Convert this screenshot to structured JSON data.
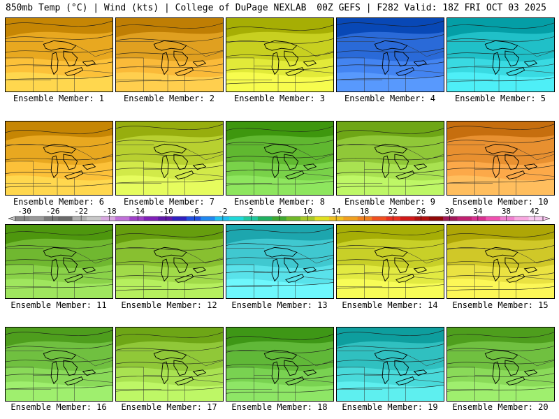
{
  "header": {
    "left": "850mb Temp (°C) | Wind (kts) | College of DuPage NEXLAB",
    "right": "00Z GEFS | F282 Valid: 18Z FRI OCT 03 2025"
  },
  "member_label_prefix": "Ensemble Member:",
  "members": [
    {
      "number": "1",
      "dominant_color": "#e8a820"
    },
    {
      "number": "2",
      "dominant_color": "#e0a020"
    },
    {
      "number": "3",
      "dominant_color": "#c8d020"
    },
    {
      "number": "4",
      "dominant_color": "#2a6ad8"
    },
    {
      "number": "5",
      "dominant_color": "#20c0c8"
    },
    {
      "number": "6",
      "dominant_color": "#e8a820"
    },
    {
      "number": "7",
      "dominant_color": "#b8d030"
    },
    {
      "number": "8",
      "dominant_color": "#60b830"
    },
    {
      "number": "9",
      "dominant_color": "#90c838"
    },
    {
      "number": "10",
      "dominant_color": "#e89030"
    },
    {
      "number": "11",
      "dominant_color": "#70b830"
    },
    {
      "number": "12",
      "dominant_color": "#88c030"
    },
    {
      "number": "13",
      "dominant_color": "#40c8d0"
    },
    {
      "number": "14",
      "dominant_color": "#c8d028"
    },
    {
      "number": "15",
      "dominant_color": "#d0c828"
    },
    {
      "number": "16",
      "dominant_color": "#70c040"
    },
    {
      "number": "17",
      "dominant_color": "#90c838"
    },
    {
      "number": "18",
      "dominant_color": "#60b838"
    },
    {
      "number": "19",
      "dominant_color": "#30c0c0"
    },
    {
      "number": "20",
      "dominant_color": "#70c040"
    }
  ],
  "color_scale": {
    "ticks": [
      "-30",
      "-26",
      "-22",
      "-18",
      "-14",
      "-10",
      "-6",
      "-2",
      "2",
      "6",
      "10",
      "14",
      "18",
      "22",
      "26",
      "30",
      "34",
      "38",
      "42"
    ],
    "colors": [
      "#8a8a8a",
      "#9a9a9a",
      "#7a7a7a",
      "#6a6a6a",
      "#b0b0b0",
      "#c8c8c8",
      "#d8a8e0",
      "#c070d8",
      "#a040c8",
      "#8020b8",
      "#6018a8",
      "#3020c0",
      "#2050e0",
      "#2088f0",
      "#20c0f0",
      "#20d8d8",
      "#20c8a0",
      "#20b060",
      "#40a830",
      "#70b828",
      "#a8c828",
      "#e0e020",
      "#f0c020",
      "#f0a020",
      "#f08020",
      "#f05020",
      "#e83020",
      "#d01818",
      "#b01010",
      "#900808",
      "#a01858",
      "#c02070",
      "#d83090",
      "#f050b0",
      "#f080d0",
      "#f8a8e0",
      "#f8c8f0"
    ]
  }
}
